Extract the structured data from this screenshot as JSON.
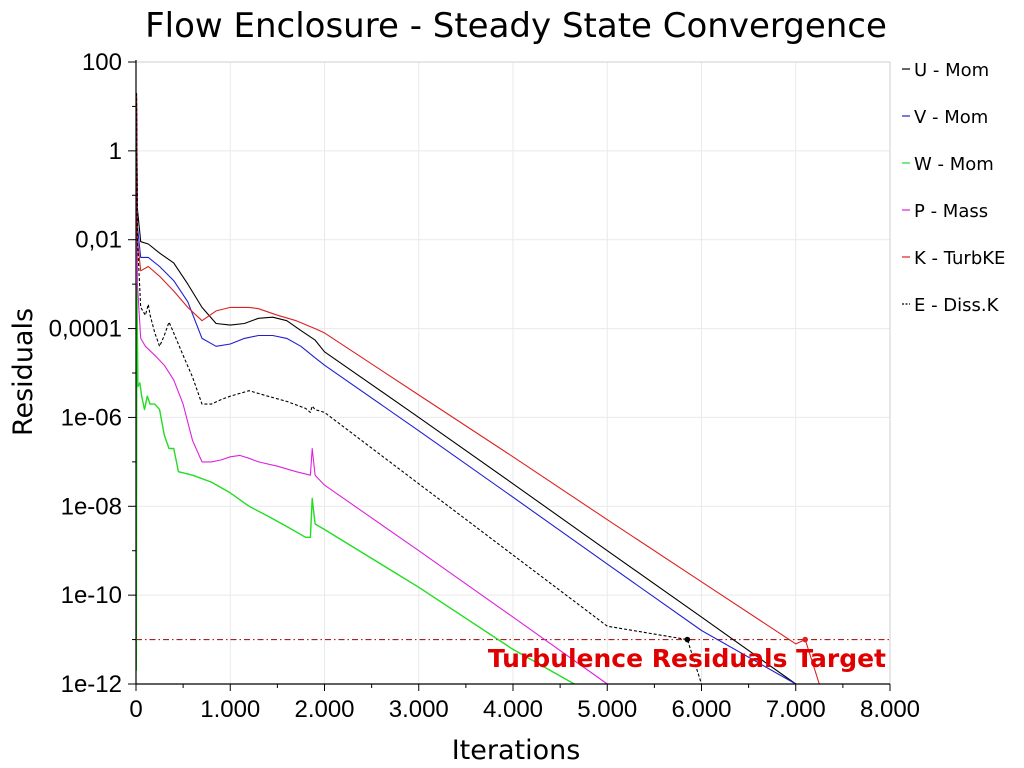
{
  "chart_data": {
    "type": "line",
    "title": "Flow Enclosure - Steady State Convergence",
    "xlabel": "Iterations",
    "ylabel": "Residuals",
    "xlim": [
      0,
      8000
    ],
    "ylim": [
      1e-12,
      100
    ],
    "yscale": "log",
    "grid": true,
    "legend_position": "right",
    "x_ticks": [
      {
        "value": 0,
        "label": "0"
      },
      {
        "value": 1000,
        "label": "1.000"
      },
      {
        "value": 2000,
        "label": "2.000"
      },
      {
        "value": 3000,
        "label": "3.000"
      },
      {
        "value": 4000,
        "label": "4.000"
      },
      {
        "value": 5000,
        "label": "5.000"
      },
      {
        "value": 6000,
        "label": "6.000"
      },
      {
        "value": 7000,
        "label": "7.000"
      },
      {
        "value": 8000,
        "label": "8.000"
      }
    ],
    "y_ticks": [
      {
        "value": 100,
        "label": "100"
      },
      {
        "value": 1,
        "label": "1"
      },
      {
        "value": 0.01,
        "label": "0,01"
      },
      {
        "value": 0.0001,
        "label": "0,0001"
      },
      {
        "value": 1e-06,
        "label": "1e-06"
      },
      {
        "value": 1e-08,
        "label": "1e-08"
      },
      {
        "value": 1e-10,
        "label": "1e-10"
      },
      {
        "value": 1e-12,
        "label": "1e-12"
      }
    ],
    "series": [
      {
        "name": "U - Mom",
        "color": "#000000",
        "dash": "solid",
        "x": [
          5,
          15,
          50,
          130,
          250,
          400,
          550,
          700,
          850,
          1000,
          1150,
          1300,
          1450,
          1600,
          1750,
          1900,
          2000,
          3000,
          4000,
          5000,
          6000,
          7000,
          7350,
          7550
        ],
        "y": [
          20,
          0.05,
          0.009,
          0.008,
          0.005,
          0.003,
          0.001,
          0.0003,
          0.00013,
          0.00012,
          0.00013,
          0.00017,
          0.00018,
          0.00015,
          9e-05,
          5.5e-05,
          3e-05,
          1e-06,
          3.2e-08,
          1e-09,
          3.2e-11,
          1e-12,
          3e-13,
          1e-12
        ]
      },
      {
        "name": "V - Mom",
        "color": "#1f1fd2",
        "dash": "solid",
        "x": [
          5,
          15,
          50,
          130,
          250,
          400,
          550,
          700,
          850,
          1000,
          1150,
          1300,
          1450,
          1600,
          1750,
          1900,
          2000,
          3000,
          4000,
          5000,
          6000,
          7000,
          7200
        ],
        "y": [
          10,
          0.02,
          0.004,
          0.004,
          0.0025,
          0.0012,
          0.0004,
          6e-05,
          4e-05,
          4.5e-05,
          6e-05,
          7e-05,
          7e-05,
          6e-05,
          4e-05,
          2.2e-05,
          1.5e-05,
          5e-07,
          1.6e-08,
          5e-10,
          1.6e-11,
          5e-13,
          1e-12
        ]
      },
      {
        "name": "W - Mom",
        "color": "#22dd22",
        "dash": "solid",
        "x": [
          3,
          10,
          20,
          40,
          60,
          90,
          120,
          150,
          200,
          250,
          300,
          350,
          400,
          430,
          450,
          600,
          800,
          1000,
          1200,
          1400,
          1600,
          1800,
          1850,
          1870,
          1900,
          2000,
          3000,
          4000,
          4650
        ],
        "y": [
          2e-12,
          0.001,
          5e-06,
          6e-06,
          3e-06,
          1.5e-06,
          3e-06,
          2e-06,
          2e-06,
          1.5e-06,
          4e-07,
          2e-07,
          2e-07,
          1e-07,
          6e-08,
          5e-08,
          3.5e-08,
          2e-08,
          1e-08,
          6e-09,
          3.5e-09,
          2e-09,
          2e-09,
          1.5e-08,
          4e-09,
          3e-09,
          1.5e-10,
          6e-12,
          1e-12
        ]
      },
      {
        "name": "P - Mass",
        "color": "#dd22dd",
        "dash": "solid",
        "x": [
          5,
          15,
          50,
          100,
          200,
          300,
          400,
          500,
          600,
          700,
          800,
          900,
          1000,
          1100,
          1200,
          1300,
          1500,
          1700,
          1850,
          1870,
          1900,
          2000,
          3000,
          4000,
          5000,
          5800
        ],
        "y": [
          5,
          0.001,
          6e-05,
          4e-05,
          2.5e-05,
          1.5e-05,
          7e-06,
          2e-06,
          3e-07,
          1e-07,
          1e-07,
          1.1e-07,
          1.3e-07,
          1.4e-07,
          1.2e-07,
          1e-07,
          8e-08,
          6e-08,
          5e-08,
          2e-07,
          5e-08,
          3e-08,
          1e-09,
          3.2e-11,
          1e-12,
          1e-12
        ]
      },
      {
        "name": "K - TurbKE",
        "color": "#dd2020",
        "dash": "solid",
        "x": [
          5,
          15,
          50,
          130,
          250,
          400,
          550,
          700,
          850,
          1000,
          1200,
          1300,
          1500,
          1700,
          1900,
          2000,
          3000,
          4000,
          5000,
          6000,
          7000,
          7100,
          7250
        ],
        "y": [
          20,
          0.01,
          0.002,
          0.0025,
          0.0015,
          0.0007,
          0.0003,
          0.00015,
          0.00025,
          0.0003,
          0.0003,
          0.00028,
          0.0002,
          0.00015,
          0.0001,
          8e-05,
          3.2e-06,
          1.3e-07,
          5e-09,
          2e-10,
          8e-12,
          1e-11,
          1e-12
        ]
      },
      {
        "name": "E - Diss.K",
        "color": "#000000",
        "dash": "dashed",
        "x": [
          5,
          15,
          50,
          100,
          130,
          150,
          200,
          250,
          300,
          350,
          400,
          500,
          600,
          700,
          800,
          900,
          1000,
          1200,
          1400,
          1600,
          1800,
          1850,
          1870,
          1900,
          2000,
          3000,
          4000,
          5000,
          5850,
          6000
        ],
        "y": [
          20,
          0.01,
          0.0003,
          0.0002,
          0.00035,
          0.0002,
          8e-05,
          4e-05,
          7e-05,
          0.00014,
          8e-05,
          2.5e-05,
          8e-06,
          2e-06,
          2e-06,
          2.5e-06,
          3e-06,
          4e-06,
          3e-06,
          2.3e-06,
          1.6e-06,
          1.3e-06,
          1.8e-06,
          1.5e-06,
          1.3e-06,
          3.2e-08,
          8e-10,
          2e-11,
          1e-11,
          1e-12
        ]
      }
    ],
    "reference_lines": [
      {
        "value": 1e-11,
        "color": "#a00000",
        "style": "dash-dot"
      },
      {
        "value": 1e-12,
        "color": "#000000",
        "style": "dash-dot"
      }
    ],
    "marker_points": [
      {
        "series": "K - TurbKE",
        "x": 7100,
        "y": 1e-11
      },
      {
        "series": "E - Diss.K",
        "x": 5850,
        "y": 1e-11
      }
    ],
    "annotations": [
      {
        "text": "Turbulence Residuals Target"
      }
    ]
  }
}
